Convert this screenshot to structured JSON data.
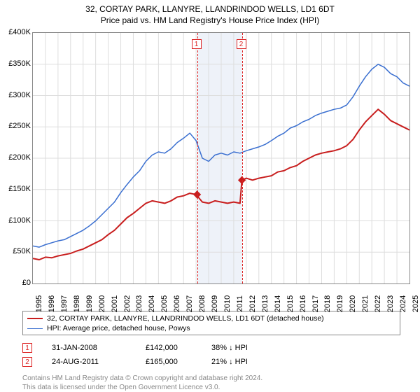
{
  "title": "32, CORTAY PARK, LLANYRE, LLANDRINDOD WELLS, LD1 6DT",
  "subtitle": "Price paid vs. HM Land Registry's House Price Index (HPI)",
  "chart": {
    "type": "line",
    "background_color": "#ffffff",
    "border_color": "#888888",
    "grid_color": "#dddddd",
    "x_start_year": 1995,
    "x_end_year": 2025,
    "x_tick_step": 1,
    "ylim": [
      0,
      400000
    ],
    "ytick_step": 50000,
    "y_ticks": [
      "£0",
      "£50K",
      "£100K",
      "£150K",
      "£200K",
      "£250K",
      "£300K",
      "£350K",
      "£400K"
    ],
    "shaded_region": {
      "start": 2008.1,
      "end": 2011.65
    },
    "markers": [
      {
        "num": "1",
        "year": 2008.08
      },
      {
        "num": "2",
        "year": 2011.65
      }
    ],
    "sale_points": [
      {
        "year": 2008.08,
        "value": 142000
      },
      {
        "year": 2011.65,
        "value": 165000
      }
    ],
    "series": [
      {
        "name": "property",
        "color": "#c81e1e",
        "width": 2,
        "data": [
          [
            1995,
            40000
          ],
          [
            1995.5,
            38000
          ],
          [
            1996,
            42000
          ],
          [
            1996.5,
            41000
          ],
          [
            1997,
            44000
          ],
          [
            1997.5,
            46000
          ],
          [
            1998,
            48000
          ],
          [
            1998.5,
            52000
          ],
          [
            1999,
            55000
          ],
          [
            1999.5,
            60000
          ],
          [
            2000,
            65000
          ],
          [
            2000.5,
            70000
          ],
          [
            2001,
            78000
          ],
          [
            2001.5,
            85000
          ],
          [
            2002,
            95000
          ],
          [
            2002.5,
            105000
          ],
          [
            2003,
            112000
          ],
          [
            2003.5,
            120000
          ],
          [
            2004,
            128000
          ],
          [
            2004.5,
            132000
          ],
          [
            2005,
            130000
          ],
          [
            2005.5,
            128000
          ],
          [
            2006,
            132000
          ],
          [
            2006.5,
            138000
          ],
          [
            2007,
            140000
          ],
          [
            2007.5,
            144000
          ],
          [
            2008,
            142000
          ],
          [
            2008.5,
            130000
          ],
          [
            2009,
            128000
          ],
          [
            2009.5,
            132000
          ],
          [
            2010,
            130000
          ],
          [
            2010.5,
            128000
          ],
          [
            2011,
            130000
          ],
          [
            2011.5,
            128000
          ],
          [
            2011.65,
            165000
          ],
          [
            2012,
            168000
          ],
          [
            2012.5,
            165000
          ],
          [
            2013,
            168000
          ],
          [
            2013.5,
            170000
          ],
          [
            2014,
            172000
          ],
          [
            2014.5,
            178000
          ],
          [
            2015,
            180000
          ],
          [
            2015.5,
            185000
          ],
          [
            2016,
            188000
          ],
          [
            2016.5,
            195000
          ],
          [
            2017,
            200000
          ],
          [
            2017.5,
            205000
          ],
          [
            2018,
            208000
          ],
          [
            2018.5,
            210000
          ],
          [
            2019,
            212000
          ],
          [
            2019.5,
            215000
          ],
          [
            2020,
            220000
          ],
          [
            2020.5,
            230000
          ],
          [
            2021,
            245000
          ],
          [
            2021.5,
            258000
          ],
          [
            2022,
            268000
          ],
          [
            2022.5,
            278000
          ],
          [
            2023,
            270000
          ],
          [
            2023.5,
            260000
          ],
          [
            2024,
            255000
          ],
          [
            2024.5,
            250000
          ],
          [
            2025,
            245000
          ]
        ]
      },
      {
        "name": "hpi",
        "color": "#3a6fd0",
        "width": 1.5,
        "data": [
          [
            1995,
            60000
          ],
          [
            1995.5,
            58000
          ],
          [
            1996,
            62000
          ],
          [
            1996.5,
            65000
          ],
          [
            1997,
            68000
          ],
          [
            1997.5,
            70000
          ],
          [
            1998,
            75000
          ],
          [
            1998.5,
            80000
          ],
          [
            1999,
            85000
          ],
          [
            1999.5,
            92000
          ],
          [
            2000,
            100000
          ],
          [
            2000.5,
            110000
          ],
          [
            2001,
            120000
          ],
          [
            2001.5,
            130000
          ],
          [
            2002,
            145000
          ],
          [
            2002.5,
            158000
          ],
          [
            2003,
            170000
          ],
          [
            2003.5,
            180000
          ],
          [
            2004,
            195000
          ],
          [
            2004.5,
            205000
          ],
          [
            2005,
            210000
          ],
          [
            2005.5,
            208000
          ],
          [
            2006,
            215000
          ],
          [
            2006.5,
            225000
          ],
          [
            2007,
            232000
          ],
          [
            2007.5,
            240000
          ],
          [
            2008,
            228000
          ],
          [
            2008.5,
            200000
          ],
          [
            2009,
            195000
          ],
          [
            2009.5,
            205000
          ],
          [
            2010,
            208000
          ],
          [
            2010.5,
            205000
          ],
          [
            2011,
            210000
          ],
          [
            2011.5,
            208000
          ],
          [
            2012,
            212000
          ],
          [
            2012.5,
            215000
          ],
          [
            2013,
            218000
          ],
          [
            2013.5,
            222000
          ],
          [
            2014,
            228000
          ],
          [
            2014.5,
            235000
          ],
          [
            2015,
            240000
          ],
          [
            2015.5,
            248000
          ],
          [
            2016,
            252000
          ],
          [
            2016.5,
            258000
          ],
          [
            2017,
            262000
          ],
          [
            2017.5,
            268000
          ],
          [
            2018,
            272000
          ],
          [
            2018.5,
            275000
          ],
          [
            2019,
            278000
          ],
          [
            2019.5,
            280000
          ],
          [
            2020,
            285000
          ],
          [
            2020.5,
            298000
          ],
          [
            2021,
            315000
          ],
          [
            2021.5,
            330000
          ],
          [
            2022,
            342000
          ],
          [
            2022.5,
            350000
          ],
          [
            2023,
            345000
          ],
          [
            2023.5,
            335000
          ],
          [
            2024,
            330000
          ],
          [
            2024.5,
            320000
          ],
          [
            2025,
            315000
          ]
        ]
      }
    ]
  },
  "legend": {
    "row1_label": "32, CORTAY PARK, LLANYRE, LLANDRINDOD WELLS, LD1 6DT (detached house)",
    "row1_color": "#c81e1e",
    "row2_label": "HPI: Average price, detached house, Powys",
    "row2_color": "#3a6fd0"
  },
  "sales": [
    {
      "num": "1",
      "date": "31-JAN-2008",
      "price": "£142,000",
      "hpi": "38% ↓ HPI"
    },
    {
      "num": "2",
      "date": "24-AUG-2011",
      "price": "£165,000",
      "hpi": "21% ↓ HPI"
    }
  ],
  "footer": {
    "line1": "Contains HM Land Registry data © Crown copyright and database right 2024.",
    "line2": "This data is licensed under the Open Government Licence v3.0."
  }
}
